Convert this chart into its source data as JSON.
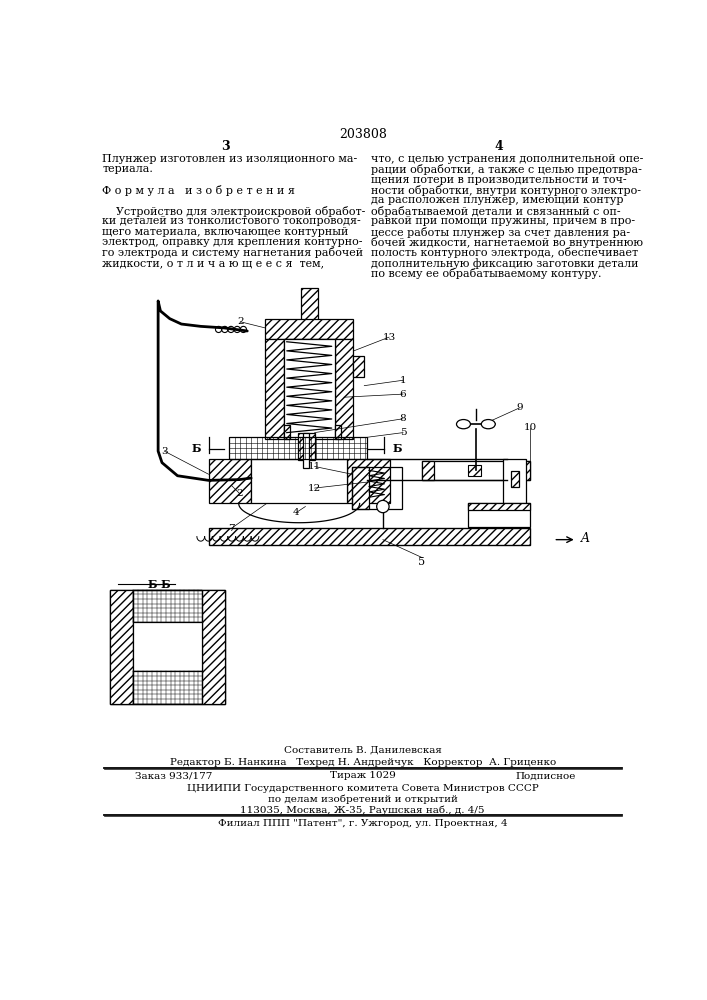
{
  "title": "203808",
  "background_color": "#ffffff",
  "page_number_left": "3",
  "page_number_right": "4",
  "text_left_col": [
    "Плунжер изготовлен из изоляционного ма-",
    "териала.",
    "",
    "Ф о р м у л а   и з о б р е т е н и я",
    "",
    "    Устройство для электроискровой обработ-",
    "ки деталей из тонколистового токопроводя-",
    "щего материала, включающее контурный",
    "электрод, оправку для крепления контурно-",
    "го электрода и систему нагнетания рабочей",
    "жидкости, о т л и ч а ю щ е е с я  тем,"
  ],
  "text_right_col": [
    "что, с целью устранения дополнительной опе-",
    "рации обработки, а также с целью предотвра-",
    "щения потери в производительности и точ-",
    "ности обработки, внутри контурного электро-",
    "да расположен плунжер, имеющий контур",
    "обрабатываемой детали и связанный с оп-",
    "равкой при помощи пружины, причем в про-",
    "цессе работы плунжер за счет давления ра-",
    "бочей жидкости, нагнетаемой во внутреннюю",
    "полость контурного электрода, обеспечивает",
    "дополнительную фиксацию заготовки детали",
    "по всему ее обрабатываемому контуру."
  ],
  "footer_composer": "Составитель В. Данилевская",
  "footer_editor": "Редактор Б. Нанкина",
  "footer_techred": "Техред Н. Андрейчук",
  "footer_corrector": "Корректор  А. Гриценко",
  "footer_order": "Заказ 933/177",
  "footer_tirazh": "Тираж 1029",
  "footer_podpisnoe": "Подписное",
  "footer_org1": "ЦНИИПИ Государственного комитета Совета Министров СССР",
  "footer_org2": "по делам изобретений и открытий",
  "footer_org3": "113035, Москва, Ж-35, Раушская наб., д. 4/5",
  "footer_filial": "Филиал ППП \"Патент\", г. Ужгород, ул. Проектная, 4"
}
